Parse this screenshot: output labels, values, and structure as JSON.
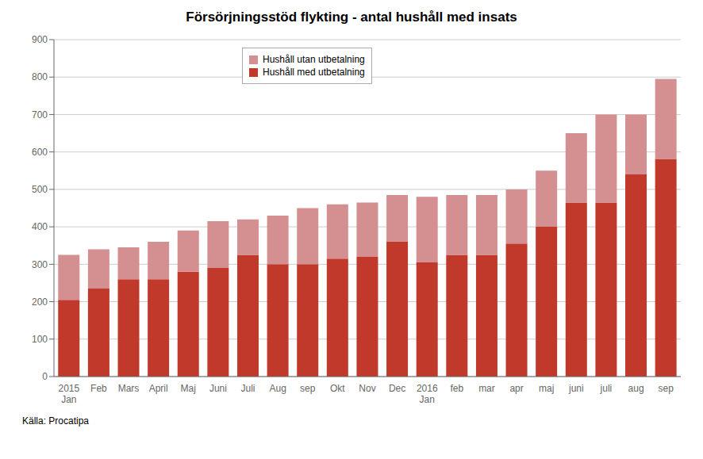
{
  "chart_data": {
    "type": "bar",
    "title": "Försörjningsstöd flykting - antal hushåll med insats",
    "annotations": [
      "Källa: Procatipa"
    ],
    "categories": [
      "2015\nJan",
      "Feb",
      "Mars",
      "April",
      "Maj",
      "Juni",
      "Juli",
      "Aug",
      "sep",
      "Okt",
      "Nov",
      "Dec",
      "2016\nJan",
      "feb",
      "mar",
      "apr",
      "maj",
      "juni",
      "juli",
      "aug",
      "sep"
    ],
    "series": [
      {
        "name": "Hushåll med utbetalning",
        "color": "#c0392b",
        "values": [
          205,
          235,
          260,
          260,
          280,
          290,
          325,
          300,
          300,
          315,
          320,
          360,
          305,
          325,
          325,
          355,
          400,
          465,
          465,
          540,
          580
        ]
      },
      {
        "name": "Hushåll utan utbetalning",
        "color": "#d49090",
        "values": [
          120,
          105,
          85,
          100,
          110,
          125,
          95,
          130,
          150,
          145,
          145,
          125,
          175,
          160,
          160,
          145,
          150,
          185,
          235,
          160,
          215
        ]
      }
    ],
    "stacked": true,
    "ylim": [
      0,
      900
    ],
    "yticks": [
      0,
      100,
      200,
      300,
      400,
      500,
      600,
      700,
      800,
      900
    ],
    "grid": true,
    "legend": "upper left"
  }
}
